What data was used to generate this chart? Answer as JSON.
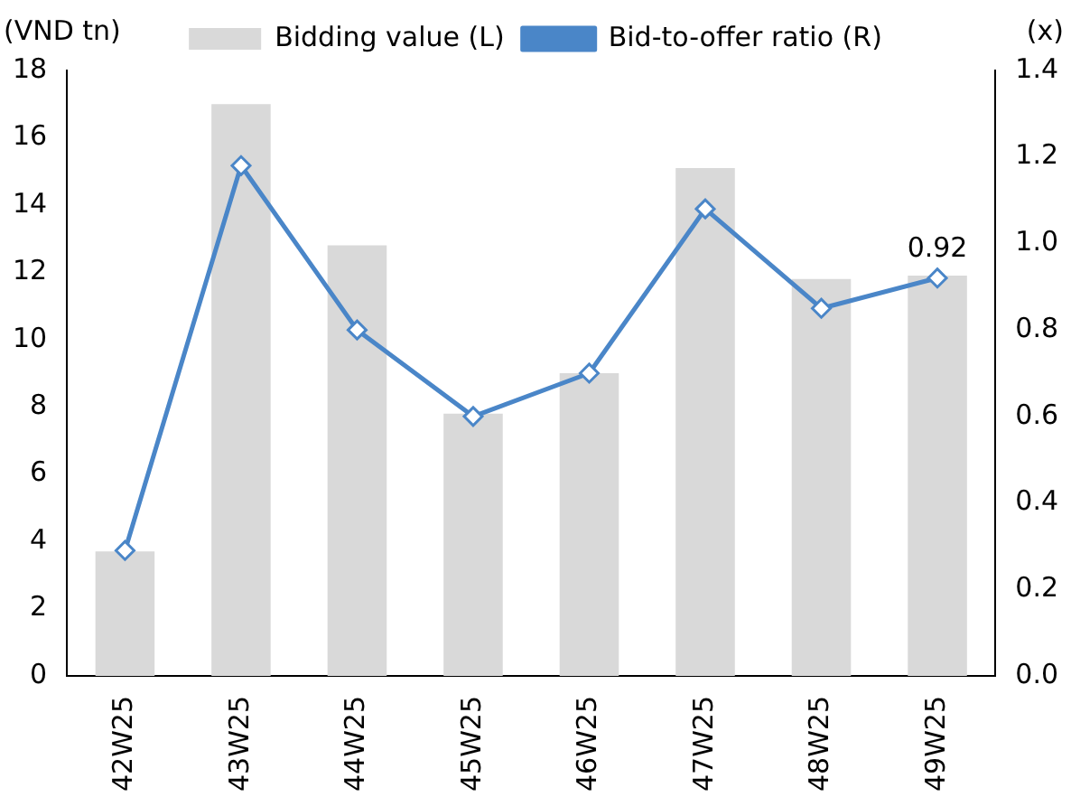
{
  "chart_data": {
    "type": "bar",
    "ylabel": "(VND tn)",
    "y2label": "(x)",
    "categories": [
      "42W25",
      "43W25",
      "44W25",
      "45W25",
      "46W25",
      "47W25",
      "48W25",
      "49W25"
    ],
    "series": [
      {
        "name": "Bidding value (L)",
        "color": "#d9d9d9",
        "values": [
          3.7,
          17.0,
          12.8,
          7.8,
          9.0,
          15.1,
          11.8,
          11.9
        ]
      },
      {
        "name": "Bid-to-offer ratio (R)",
        "type": "line",
        "axis": "y2",
        "color": "#4a86c8",
        "values": [
          0.29,
          1.18,
          0.8,
          0.6,
          0.7,
          1.08,
          0.85,
          0.92
        ],
        "value_labels": [
          null,
          null,
          null,
          null,
          null,
          null,
          null,
          "0.92"
        ]
      }
    ],
    "ylim": [
      0,
      18
    ],
    "yticks": [
      0,
      2,
      4,
      6,
      8,
      10,
      12,
      14,
      16,
      18
    ],
    "y2lim": [
      0,
      1.4
    ],
    "y2ticks": [
      {
        "value": 0,
        "label": "0.0"
      },
      {
        "value": 0.2,
        "label": "0.2"
      },
      {
        "value": 0.4,
        "label": "0.4"
      },
      {
        "value": 0.6,
        "label": "0.6"
      },
      {
        "value": 0.8,
        "label": "0.8"
      },
      {
        "value": 1.0,
        "label": "1.0"
      },
      {
        "value": 1.2,
        "label": "1.2"
      },
      {
        "value": 1.4,
        "label": "1.4"
      }
    ],
    "grid": false,
    "legend": "top",
    "marker": "diamond",
    "line_style": "solid"
  }
}
